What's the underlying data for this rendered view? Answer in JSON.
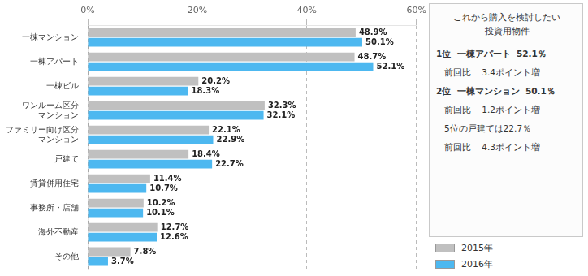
{
  "chart_data": {
    "type": "bar",
    "orientation": "horizontal",
    "categories": [
      "一棟マンション",
      "一棟アパート",
      "一棟ビル",
      "ワンルーム区分\nマンション",
      "ファミリー向け区分\nマンション",
      "戸建て",
      "賃貸併用住宅",
      "事務所・店舗",
      "海外不動産",
      "その他"
    ],
    "series": [
      {
        "name": "2015年",
        "color": "#c0c0c0",
        "values": [
          48.9,
          48.7,
          20.2,
          32.3,
          22.1,
          18.4,
          11.4,
          10.2,
          12.7,
          7.8
        ],
        "value_labels": [
          "48.9%",
          "48.7%",
          "20.2%",
          "32.3%",
          "22.1%",
          "18.4%",
          "11.4%",
          "10.2%",
          "12.7%",
          "7.8%"
        ]
      },
      {
        "name": "2016年",
        "color": "#4db8f0",
        "values": [
          50.1,
          52.1,
          18.3,
          32.1,
          22.9,
          22.7,
          10.7,
          10.1,
          12.6,
          3.7
        ],
        "value_labels": [
          "50.1%",
          "52.1%",
          "18.3%",
          "32.1%",
          "22.9%",
          "22.7%",
          "10.7%",
          "10.1%",
          "12.6%",
          "3.7%"
        ]
      }
    ],
    "xlim": [
      0,
      60
    ],
    "xticks": [
      {
        "value": 0,
        "label": "0%"
      },
      {
        "value": 20,
        "label": "20%"
      },
      {
        "value": 40,
        "label": "40%"
      },
      {
        "value": 60,
        "label": "60%"
      }
    ],
    "grid": true,
    "data_labels": true,
    "legend": "lower right",
    "annotations": [
      "これから購入を検討したい",
      "投資用物件",
      "1位  一棟アパート  52.1％",
      "前回比    3.4ポイント増",
      "2位  一棟マンション  50.1％",
      "前回比    1.2ポイント増",
      "5位の戸建ては22.7％",
      "前回比    4.3ポイント増"
    ]
  }
}
